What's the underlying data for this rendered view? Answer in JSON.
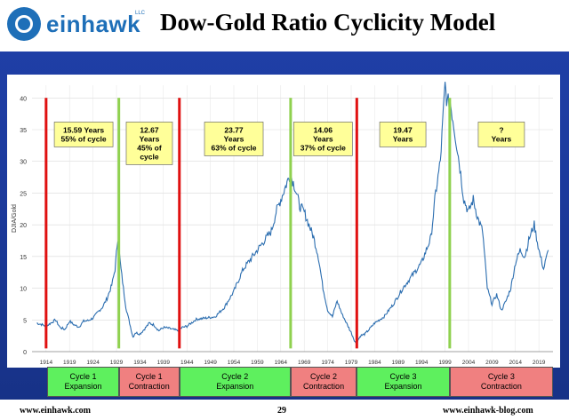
{
  "header": {
    "logo_text": "einhawk",
    "logo_llc": "LLC",
    "title": "Dow-Gold Ratio Cyclicity Model"
  },
  "footer": {
    "left": "www.einhawk.com",
    "page": "29",
    "right": "www.einhawk-blog.com"
  },
  "colors": {
    "band": "#1f3fa6",
    "line": "#2c6eb0",
    "red_marker": "#e01010",
    "green_marker": "#8fd14f",
    "expansion": "#5ef05e",
    "contraction": "#f08080",
    "label_box": "#ffff99"
  },
  "chart_data": {
    "type": "line",
    "title": "Dow-Gold Ratio Cyclicity Model",
    "ylabel": "DJIA/Gold",
    "xlabel": "",
    "xlim": [
      1911,
      2022
    ],
    "ylim": [
      0,
      42
    ],
    "yticks": [
      0,
      5,
      10,
      15,
      20,
      25,
      30,
      35,
      40
    ],
    "xticks": [
      1914,
      1919,
      1924,
      1929,
      1934,
      1939,
      1944,
      1949,
      1954,
      1959,
      1964,
      1969,
      1974,
      1979,
      1984,
      1989,
      1994,
      1999,
      2004,
      2009,
      2014,
      2019
    ],
    "series": [
      {
        "name": "DJIA/Gold",
        "x": [
          1912,
          1913,
          1914,
          1915,
          1916,
          1917,
          1918,
          1919,
          1920,
          1921,
          1922,
          1923,
          1924,
          1925,
          1926,
          1927,
          1928,
          1928.7,
          1929.3,
          1929.8,
          1930.3,
          1931,
          1931.8,
          1932.5,
          1933,
          1934,
          1935,
          1936,
          1937,
          1938,
          1939,
          1940,
          1941,
          1942,
          1943,
          1944,
          1946,
          1948,
          1950,
          1952,
          1954,
          1956,
          1958,
          1960,
          1962,
          1963,
          1964,
          1965,
          1966,
          1967,
          1968,
          1969,
          1970,
          1971,
          1972,
          1973,
          1974,
          1975,
          1976,
          1977,
          1978,
          1979,
          1980,
          1981,
          1982,
          1984,
          1986,
          1988,
          1990,
          1992,
          1994,
          1996,
          1997,
          1998,
          1999,
          1999.5,
          2000,
          2001,
          2002,
          2003,
          2004,
          2005,
          2006,
          2007,
          2008,
          2009,
          2010,
          2011,
          2012,
          2013,
          2014,
          2015,
          2016,
          2017,
          2018,
          2019,
          2020,
          2021
        ],
        "values": [
          4.5,
          4.3,
          4.0,
          4.5,
          5.0,
          3.8,
          3.5,
          4.8,
          4.2,
          3.9,
          4.8,
          4.9,
          5.3,
          6.2,
          7.0,
          8.4,
          10.5,
          13.0,
          18.0,
          14.0,
          11.0,
          7.0,
          4.5,
          2.3,
          3.0,
          2.8,
          3.6,
          4.5,
          4.2,
          3.3,
          3.8,
          3.7,
          3.5,
          3.3,
          3.8,
          4.0,
          5.1,
          5.3,
          5.5,
          7.0,
          9.5,
          13.0,
          15.0,
          17.0,
          19.0,
          22.0,
          24.0,
          26.0,
          28.0,
          26.0,
          23.0,
          22.0,
          20.0,
          18.0,
          15.0,
          10.0,
          6.5,
          5.5,
          8.0,
          6.0,
          4.5,
          3.0,
          1.3,
          2.5,
          2.8,
          4.5,
          5.5,
          7.5,
          10.0,
          12.0,
          14.0,
          18.0,
          25.0,
          30.0,
          42.0,
          39.0,
          40.0,
          35.0,
          30.0,
          24.0,
          22.0,
          24.0,
          21.0,
          19.0,
          10.0,
          7.5,
          9.0,
          6.5,
          8.0,
          10.0,
          14.0,
          16.0,
          15.0,
          18.0,
          20.0,
          16.0,
          13.0,
          16.0
        ]
      }
    ],
    "red_markers": [
      1914,
      1942.4,
      1980.2
    ],
    "green_markers": [
      1929.5,
      1966.1,
      2000
    ],
    "annotations": [
      {
        "lines": [
          "15.59 Years",
          "55% of cycle"
        ],
        "x": 1922
      },
      {
        "lines": [
          "12.67",
          "Years",
          "45% of",
          "cycle"
        ],
        "x": 1936
      },
      {
        "lines": [
          "23.77",
          "Years",
          "63% of cycle"
        ],
        "x": 1954
      },
      {
        "lines": [
          "14.06",
          "Years",
          "37% of cycle"
        ],
        "x": 1973
      },
      {
        "lines": [
          "19.47",
          "Years"
        ],
        "x": 1990
      },
      {
        "lines": [
          "?",
          "Years"
        ],
        "x": 2011
      }
    ]
  },
  "phases": [
    {
      "lines": [
        "Cycle 1",
        "Expansion"
      ],
      "kind": "expansion"
    },
    {
      "lines": [
        "Cycle 1",
        "Contraction"
      ],
      "kind": "contraction"
    },
    {
      "lines": [
        "Cycle 2",
        "Expansion"
      ],
      "kind": "expansion"
    },
    {
      "lines": [
        "Cycle 2",
        "Contraction"
      ],
      "kind": "contraction"
    },
    {
      "lines": [
        "Cycle 3",
        "Expansion"
      ],
      "kind": "expansion"
    },
    {
      "lines": [
        "Cycle 3",
        "Contraction"
      ],
      "kind": "contraction"
    }
  ]
}
